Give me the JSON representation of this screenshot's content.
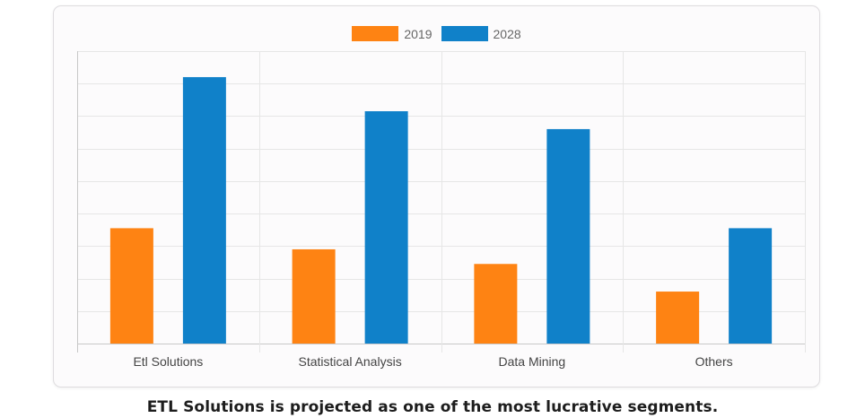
{
  "chart_data": {
    "type": "bar",
    "categories": [
      "Etl Solutions",
      "Statistical Analysis",
      "Data Mining",
      "Others"
    ],
    "series": [
      {
        "name": "2019",
        "values": [
          3.55,
          2.9,
          2.45,
          1.6
        ],
        "color": "#fe8313"
      },
      {
        "name": "2028",
        "values": [
          8.2,
          7.15,
          6.6,
          3.55
        ],
        "color": "#1081c9"
      }
    ],
    "ylim": [
      0,
      9
    ],
    "y_gridlines": 9,
    "grid": true,
    "y_tick_labels_shown": false,
    "legend_position": "top-center"
  },
  "caption": "ETL Solutions is projected as one of the most lucrative segments."
}
